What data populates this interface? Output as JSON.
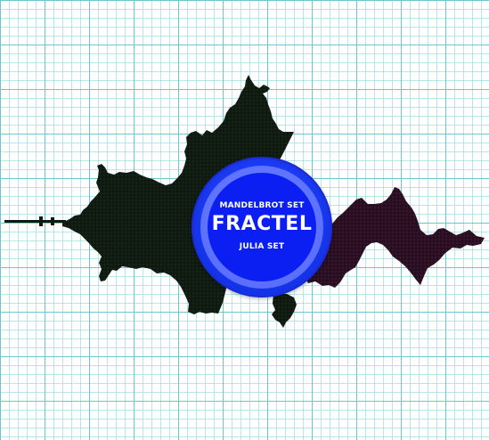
{
  "logo": {
    "top_label": "MANDELBROT SET",
    "title": "FRACTEL",
    "bottom_label": "JULIA SET"
  },
  "colors": {
    "grid_major": "#68c4ce",
    "grid_minor": "#aee0e6",
    "mandelbrot_fill": "#0f1a10",
    "julia_fill": "#2a0f22",
    "logo_blue": "#0b1ff2"
  },
  "icons": {
    "mandelbrot": "mandelbrot-fractal-icon",
    "julia": "julia-fractal-icon"
  }
}
